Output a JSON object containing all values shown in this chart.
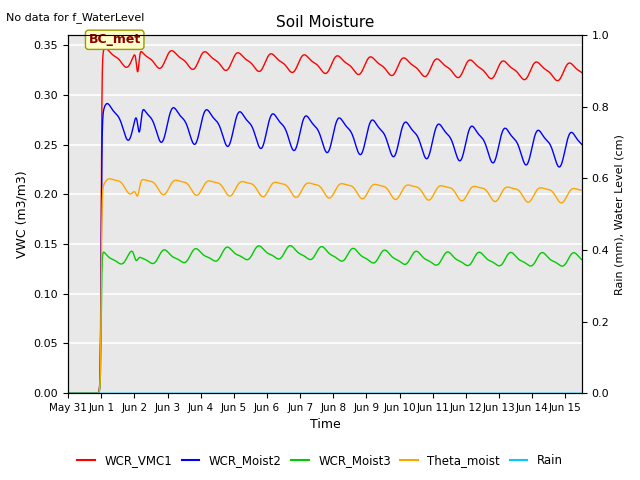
{
  "title": "Soil Moisture",
  "top_left_text": "No data for f_WaterLevel",
  "annotation_box": "BC_met",
  "xlabel": "Time",
  "ylabel_left": "VWC (m3/m3)",
  "ylabel_right": "Rain (mm), Water Level (cm)",
  "xlim_days": [
    0,
    15.5
  ],
  "ylim_left": [
    0,
    0.36
  ],
  "ylim_right": [
    0.0,
    1.0
  ],
  "xtick_labels": [
    "May 31",
    "Jun 1",
    "Jun 2",
    "Jun 3",
    "Jun 4",
    "Jun 5",
    "Jun 6",
    "Jun 7",
    "Jun 8",
    "Jun 9",
    "Jun 10",
    "Jun 11",
    "Jun 12",
    "Jun 13",
    "Jun 14",
    "Jun 15"
  ],
  "xtick_positions": [
    0,
    1,
    2,
    3,
    4,
    5,
    6,
    7,
    8,
    9,
    10,
    11,
    12,
    13,
    14,
    15
  ],
  "yticks_left": [
    0.0,
    0.05,
    0.1,
    0.15,
    0.2,
    0.25,
    0.3,
    0.35
  ],
  "yticks_right": [
    0.0,
    0.2,
    0.4,
    0.6,
    0.8,
    1.0
  ],
  "grid_color": "#ffffff",
  "bg_color": "#e8e8e8",
  "line_colors": {
    "WCR_VMC1": "#ff0000",
    "WCR_Moist2": "#0000ff",
    "WCR_Moist3": "#00cc00",
    "Theta_moist": "#ffa500",
    "Rain": "#00ccff"
  },
  "legend_entries": [
    "WCR_VMC1",
    "WCR_Moist2",
    "WCR_Moist3",
    "Theta_moist",
    "Rain"
  ]
}
